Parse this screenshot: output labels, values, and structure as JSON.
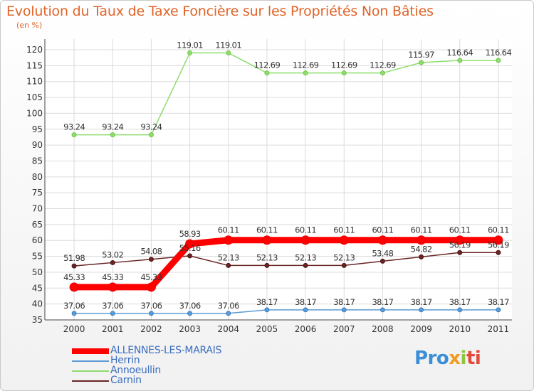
{
  "header": {
    "title": "Evolution du Taux de Taxe Foncière sur les Propriétés Non Bâties",
    "subtitle": "(en %)"
  },
  "logo": {
    "part1": "Pro",
    "part2": "x",
    "part3": "i",
    "part4": "ti"
  },
  "chart_data": {
    "type": "line",
    "title": "Evolution du Taux de Taxe Foncière sur les Propriétés Non Bâties",
    "ylabel": "(en %)",
    "xlabel": "",
    "ylim": [
      35,
      120
    ],
    "yticks": [
      35,
      40,
      45,
      50,
      55,
      60,
      65,
      70,
      75,
      80,
      85,
      90,
      95,
      100,
      105,
      110,
      115,
      120
    ],
    "grid": true,
    "categories": [
      "2000",
      "2001",
      "2002",
      "2003",
      "2004",
      "2005",
      "2006",
      "2007",
      "2008",
      "2009",
      "2010",
      "2011"
    ],
    "series": [
      {
        "name": "ALLENNES-LES-MARAIS",
        "color": "#ff0000",
        "values": [
          45.33,
          45.33,
          45.33,
          58.93,
          60.11,
          60.11,
          60.11,
          60.11,
          60.11,
          60.11,
          60.11,
          60.11
        ],
        "labels": [
          "45.33",
          "45.33",
          "45.33",
          "58.93",
          "60.11",
          "60.11",
          "60.11",
          "60.11",
          "60.11",
          "60.11",
          "60.11",
          "60.11"
        ]
      },
      {
        "name": "Herrin",
        "color": "#5b9bd5",
        "values": [
          37.06,
          37.06,
          37.06,
          37.06,
          37.06,
          38.17,
          38.17,
          38.17,
          38.17,
          38.17,
          38.17,
          38.17
        ],
        "labels": [
          "37.06",
          "37.06",
          "37.06",
          "37.06",
          "37.06",
          "38.17",
          "38.17",
          "38.17",
          "38.17",
          "38.17",
          "38.17",
          "38.17"
        ]
      },
      {
        "name": "Annoeullin",
        "color": "#8fdd6e",
        "values": [
          93.24,
          93.24,
          93.24,
          119.01,
          119.01,
          112.69,
          112.69,
          112.69,
          112.69,
          115.97,
          116.64,
          116.64
        ],
        "labels": [
          "93.24",
          "93.24",
          "93.24",
          "119.01",
          "119.01",
          "112.69",
          "112.69",
          "112.69",
          "112.69",
          "115.97",
          "116.64",
          "116.64"
        ]
      },
      {
        "name": "Carnin",
        "color": "#6b2424",
        "values": [
          51.98,
          53.02,
          54.08,
          55.16,
          52.13,
          52.13,
          52.13,
          52.13,
          53.48,
          54.82,
          56.19,
          56.19
        ],
        "labels": [
          "51.98",
          "53.02",
          "54.08",
          "55.16",
          "52.13",
          "52.13",
          "52.13",
          "52.13",
          "53.48",
          "54.82",
          "56.19",
          "56.19"
        ]
      }
    ],
    "legend_position": "bottom-left"
  }
}
